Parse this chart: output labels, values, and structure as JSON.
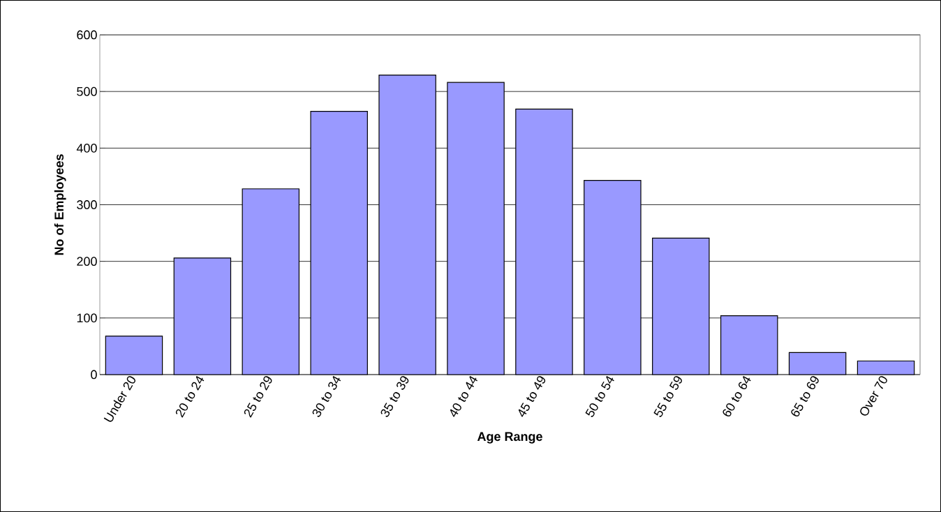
{
  "chart_data": {
    "type": "bar",
    "xlabel": "Age Range",
    "ylabel": "No of Employees",
    "categories": [
      "Under 20",
      "20 to 24",
      "25 to 29",
      "30 to 34",
      "35 to 39",
      "40 to 44",
      "45 to 49",
      "50 to 54",
      "55 to 59",
      "60 to 64",
      "65 to 69",
      "Over 70"
    ],
    "values": [
      68,
      206,
      328,
      465,
      529,
      516,
      469,
      343,
      241,
      104,
      39,
      24
    ],
    "color": "#9999ff",
    "ylim": [
      0,
      600
    ],
    "yticks": [
      0,
      100,
      200,
      300,
      400,
      500,
      600
    ],
    "grid": "y"
  }
}
